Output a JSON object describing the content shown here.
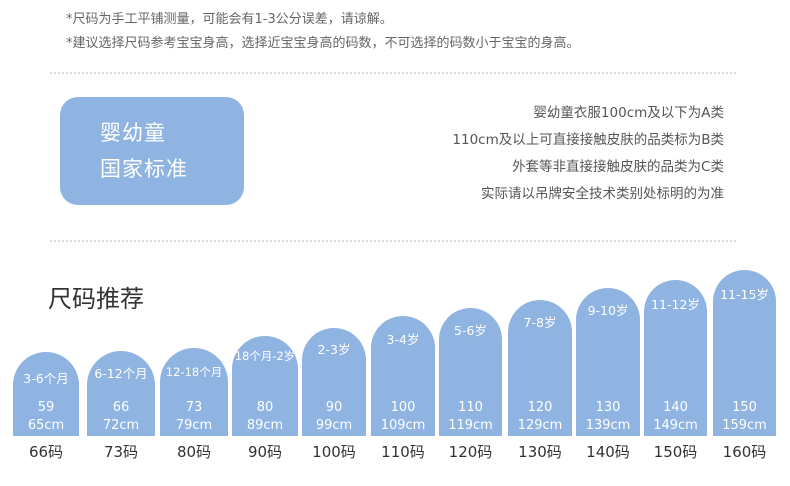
{
  "notes": [
    "*尺码为手工平铺测量，可能会有1-3公分误差，请谅解。",
    "*建议选择尺码参考宝宝身高，选择近宝宝身高的码数，不可选择的码数小于宝宝的身高。"
  ],
  "badge": {
    "line1": "婴幼童",
    "line2": "国家标准"
  },
  "standards": [
    "婴幼童衣服100cm及以下为A类",
    "110cm及以上可直接接触皮肤的品类标为B类",
    "外套等非直接接触皮肤的品类为C类",
    "实际请以吊牌安全技术类别处标明的为准"
  ],
  "section_title": "尺码推荐",
  "colors": {
    "accent": "#8fb4e2"
  },
  "sizes": [
    {
      "age": "3-6个月",
      "height": "59",
      "range": "65cm",
      "size": "66码"
    },
    {
      "age": "6-12个月",
      "height": "66",
      "range": "72cm",
      "size": "73码"
    },
    {
      "age": "12-18个月",
      "height": "73",
      "range": "79cm",
      "size": "80码"
    },
    {
      "age": "18个月-2岁",
      "height": "80",
      "range": "89cm",
      "size": "90码"
    },
    {
      "age": "2-3岁",
      "height": "90",
      "range": "99cm",
      "size": "100码"
    },
    {
      "age": "3-4岁",
      "height": "100",
      "range": "109cm",
      "size": "110码"
    },
    {
      "age": "5-6岁",
      "height": "110",
      "range": "119cm",
      "size": "120码"
    },
    {
      "age": "7-8岁",
      "height": "120",
      "range": "129cm",
      "size": "130码"
    },
    {
      "age": "9-10岁",
      "height": "130",
      "range": "139cm",
      "size": "140码"
    },
    {
      "age": "11-12岁",
      "height": "140",
      "range": "149cm",
      "size": "150码"
    },
    {
      "age": "11-15岁",
      "height": "150",
      "range": "159cm",
      "size": "160码"
    }
  ]
}
